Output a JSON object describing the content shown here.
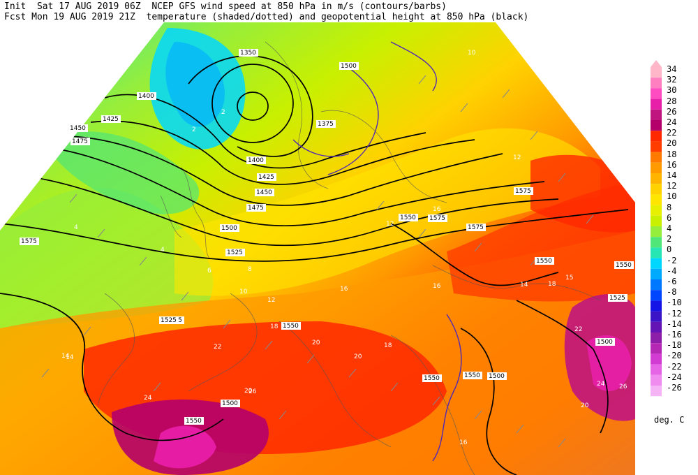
{
  "header": {
    "line1": "Init  Sat 17 AUG 2019 06Z  NCEP GFS wind speed at 850 hPa in m/s (contours/barbs)",
    "line2": "Fcst Mon 19 AUG 2019 21Z  temperature (shaded/dotted) and geopotential height at 850 hPa (black)"
  },
  "legend": {
    "unit": "deg. C",
    "levels": [
      "34",
      "32",
      "30",
      "28",
      "26",
      "24",
      "22",
      "20",
      "18",
      "16",
      "14",
      "12",
      "10",
      "8",
      "6",
      "4",
      "2",
      "0",
      "-2",
      "-4",
      "-6",
      "-8",
      "-10",
      "-12",
      "-14",
      "-16",
      "-18",
      "-20",
      "-22",
      "-24",
      "-26"
    ],
    "colors": [
      "#ffb6c8",
      "#ff7fc0",
      "#ff4cc0",
      "#e81fa8",
      "#c0157e",
      "#b4006a",
      "#ff2800",
      "#ff3d00",
      "#ff7a00",
      "#ff9a00",
      "#ffb400",
      "#ffd200",
      "#ffe600",
      "#e6f000",
      "#c8f000",
      "#96ee3c",
      "#50e678",
      "#28e6b4",
      "#00d7ff",
      "#00aaff",
      "#0078ff",
      "#0046ff",
      "#1414e6",
      "#3c14c8",
      "#6414b4",
      "#8c1eaa",
      "#b428b4",
      "#d23cd2",
      "#e664e6",
      "#f08cf0",
      "#f5b4f5"
    ]
  },
  "map": {
    "height_labels": [
      "1350",
      "1400",
      "1425",
      "1450",
      "1475",
      "1500",
      "1525",
      "1550",
      "1575",
      "1375",
      "1400",
      "1425",
      "1450",
      "1475",
      "1500",
      "1525",
      "1550",
      "1575",
      "1575",
      "1550",
      "1550",
      "1525",
      "1500",
      "1500",
      "1550",
      "1525",
      "1550",
      "1575",
      "1550",
      "1500",
      "1550"
    ],
    "temp_labels": [
      "2",
      "2",
      "4",
      "4",
      "6",
      "8",
      "10",
      "12",
      "14",
      "16",
      "18",
      "20",
      "22",
      "24",
      "26",
      "20",
      "16",
      "12",
      "14",
      "15",
      "10",
      "12",
      "18",
      "20",
      "16",
      "24",
      "26",
      "22",
      "18",
      "14",
      "20",
      "16"
    ]
  }
}
